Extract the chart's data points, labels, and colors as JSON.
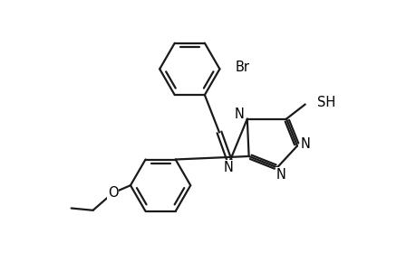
{
  "background_color": "#ffffff",
  "line_color": "#1a1a1a",
  "line_width": 1.6,
  "text_color": "#000000",
  "font_size": 10.5,
  "fig_width": 4.6,
  "fig_height": 3.0,
  "dpi": 100,
  "xlim": [
    0,
    10
  ],
  "ylim": [
    0,
    6.5
  ]
}
